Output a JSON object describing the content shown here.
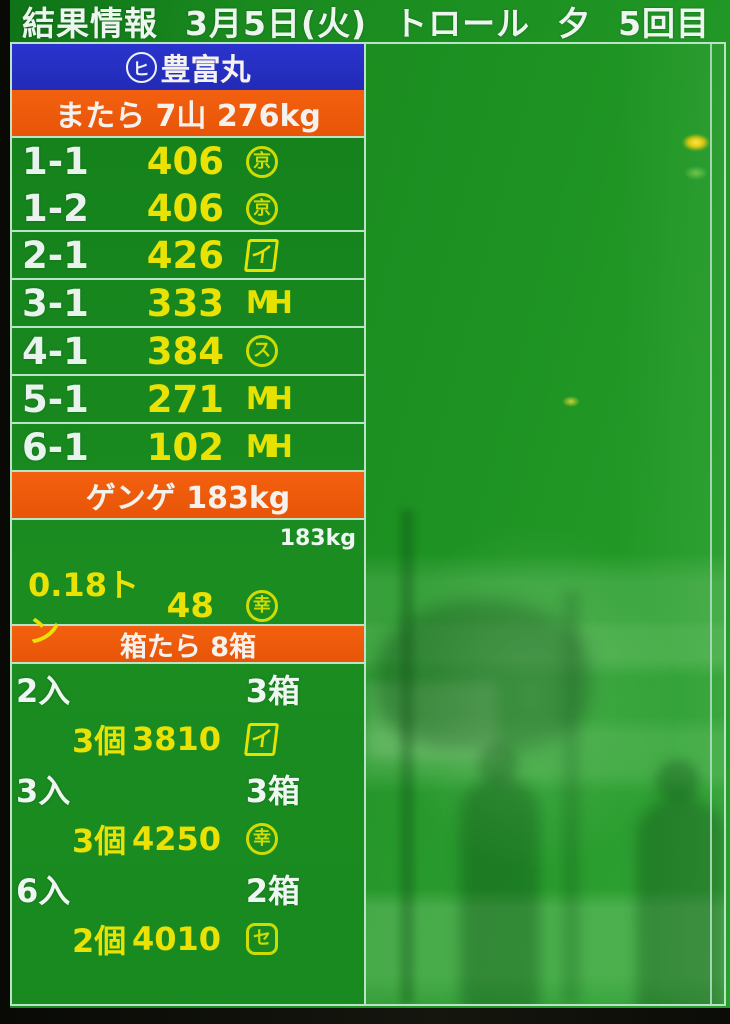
{
  "colors": {
    "display_green": "#1e9323",
    "header_blue": "#2a34cd",
    "bar_orange": "#ee5a0c",
    "value_yellow": "#e9e204",
    "label_white": "#eef6f1",
    "grid_border": "#b9e4c6"
  },
  "header": {
    "title": "結果情報",
    "date": "3月5日(火)",
    "method": "トロール",
    "session": "夕",
    "round": "5回目"
  },
  "vessel": {
    "prefix_mark": "ヒ",
    "name": "豊富丸"
  },
  "matara": {
    "title": "またら 7山 276kg",
    "rows": [
      {
        "lot": "1-1",
        "price": "406",
        "buyer": "京"
      },
      {
        "lot": "1-2",
        "price": "406",
        "buyer": "京"
      },
      {
        "lot": "2-1",
        "price": "426",
        "buyer": "イ"
      },
      {
        "lot": "3-1",
        "price": "333",
        "buyer": "MH"
      },
      {
        "lot": "4-1",
        "price": "384",
        "buyer": "ス"
      },
      {
        "lot": "5-1",
        "price": "271",
        "buyer": "MH"
      },
      {
        "lot": "6-1",
        "price": "102",
        "buyer": "MH"
      }
    ]
  },
  "genge": {
    "title": "ゲンゲ 183kg",
    "weight_note": "183kg",
    "row": {
      "qty": "0.18トン",
      "price": "48",
      "buyer": "幸"
    }
  },
  "hakotara": {
    "title": "箱たら 8箱",
    "groups": [
      {
        "pack": "2入",
        "boxes": "3箱",
        "count": "3個",
        "price": "3810",
        "buyer": "イ"
      },
      {
        "pack": "3入",
        "boxes": "3箱",
        "count": "3個",
        "price": "4250",
        "buyer": "幸"
      },
      {
        "pack": "6入",
        "boxes": "2箱",
        "count": "2個",
        "price": "4010",
        "buyer": "セ"
      }
    ]
  }
}
